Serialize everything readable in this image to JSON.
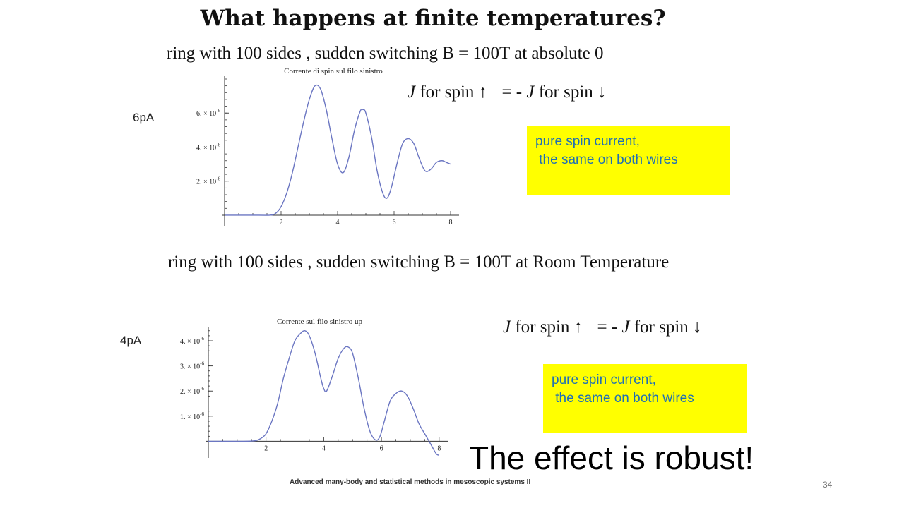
{
  "slide": {
    "title": "What happens at finite temperatures?",
    "footer": "Advanced many-body and statistical methods in mesoscopic systems II",
    "page_number": "34",
    "conclusion": "The effect is robust!",
    "box_color": "#ffff00",
    "box_text_color": "#1f6fb5",
    "curve_color": "#6b76c2"
  },
  "sections": [
    {
      "caption": "ring with 100 sides , sudden switching B = 100T  at absolute 0",
      "unit_label": "6pA",
      "formula": {
        "J1": "J",
        "for_spin_up": "for spin ↑",
        "equals": "= -",
        "J2": "J",
        "for_spin_down": "for spin ↓"
      },
      "box_lines": [
        "pure spin current,",
        " the same on both wires"
      ]
    },
    {
      "caption": "ring with 100 sides , sudden switching B = 100T  at Room Temperature",
      "unit_label": "4pA",
      "formula": {
        "J1": "J",
        "for_spin_up": "for spin ↑",
        "equals": "= -",
        "J2": "J",
        "for_spin_down": "for spin ↓"
      },
      "box_lines": [
        "pure spin current,",
        " the same on both wires"
      ]
    }
  ],
  "chart_data": [
    {
      "type": "line",
      "title": "Corrente di spin sul filo sinistro",
      "xlim": [
        0,
        8.2
      ],
      "ylim": [
        -5e-07,
        8e-06
      ],
      "xticks": [
        2,
        4,
        6,
        8
      ],
      "xtick_labels": [
        "2",
        "4",
        "6",
        "8"
      ],
      "yticks": [
        2e-06,
        4e-06,
        6e-06
      ],
      "ytick_labels": [
        [
          "2.",
          "-6"
        ],
        [
          "4.",
          "-6"
        ],
        [
          "6.",
          "-6"
        ]
      ],
      "series": [
        {
          "x": [
            0,
            1.2,
            1.6,
            1.8,
            2.0,
            2.2,
            2.4,
            2.6,
            2.8,
            3.0,
            3.2,
            3.4,
            3.6,
            3.8,
            4.0,
            4.2,
            4.4,
            4.6,
            4.8,
            4.9,
            5.0,
            5.2,
            5.4,
            5.6,
            5.75,
            5.9,
            6.1,
            6.3,
            6.5,
            6.7,
            6.9,
            7.1,
            7.3,
            7.5,
            7.7,
            7.85,
            8.0
          ],
          "y": [
            0,
            0,
            0.0,
            1e-07,
            5e-07,
            1.3e-06,
            2.5e-06,
            4e-06,
            5.5e-06,
            6.8e-06,
            7.6e-06,
            7.4e-06,
            6.2e-06,
            4.5e-06,
            3e-06,
            2.5e-06,
            3.4e-06,
            5e-06,
            6.1e-06,
            6.2e-06,
            6e-06,
            4.6e-06,
            2.6e-06,
            1.3e-06,
            1e-06,
            1.6e-06,
            3e-06,
            4.2e-06,
            4.5e-06,
            4.2e-06,
            3.3e-06,
            2.6e-06,
            2.7e-06,
            3.1e-06,
            3.2e-06,
            3.1e-06,
            3e-06
          ]
        }
      ]
    },
    {
      "type": "line",
      "title": "Corrente sul filo sinistro up",
      "xlim": [
        0,
        8.2
      ],
      "ylim": [
        -5.5e-07,
        4.45e-06
      ],
      "xticks": [
        2,
        4,
        6,
        8
      ],
      "xtick_labels": [
        "2",
        "4",
        "6",
        "8"
      ],
      "yticks": [
        1e-06,
        2e-06,
        3e-06,
        4e-06
      ],
      "ytick_labels": [
        [
          "1.",
          "-6"
        ],
        [
          "2.",
          "-6"
        ],
        [
          "3.",
          "-6"
        ],
        [
          "4.",
          "-6"
        ]
      ],
      "series": [
        {
          "x": [
            0,
            1.2,
            1.6,
            1.8,
            2.0,
            2.2,
            2.4,
            2.6,
            2.8,
            3.0,
            3.2,
            3.35,
            3.5,
            3.7,
            3.9,
            4.0,
            4.1,
            4.3,
            4.5,
            4.7,
            4.85,
            5.0,
            5.2,
            5.4,
            5.6,
            5.8,
            5.95,
            6.1,
            6.3,
            6.5,
            6.7,
            6.9,
            7.1,
            7.3,
            7.5,
            7.7,
            7.9,
            8.0
          ],
          "y": [
            0,
            0,
            2e-08,
            1e-07,
            3e-07,
            8e-07,
            1.5e-06,
            2.5e-06,
            3.3e-06,
            4e-06,
            4.3e-06,
            4.4e-06,
            4.2e-06,
            3.5e-06,
            2.5e-06,
            2.1e-06,
            2e-06,
            2.6e-06,
            3.3e-06,
            3.7e-06,
            3.75e-06,
            3.5e-06,
            2.5e-06,
            1.3e-06,
            4e-07,
            5e-08,
            2e-07,
            8e-07,
            1.6e-06,
            1.9e-06,
            2e-06,
            1.8e-06,
            1.3e-06,
            7e-07,
            3e-07,
            -1e-07,
            -5e-07,
            -5.5e-07
          ]
        }
      ]
    }
  ]
}
